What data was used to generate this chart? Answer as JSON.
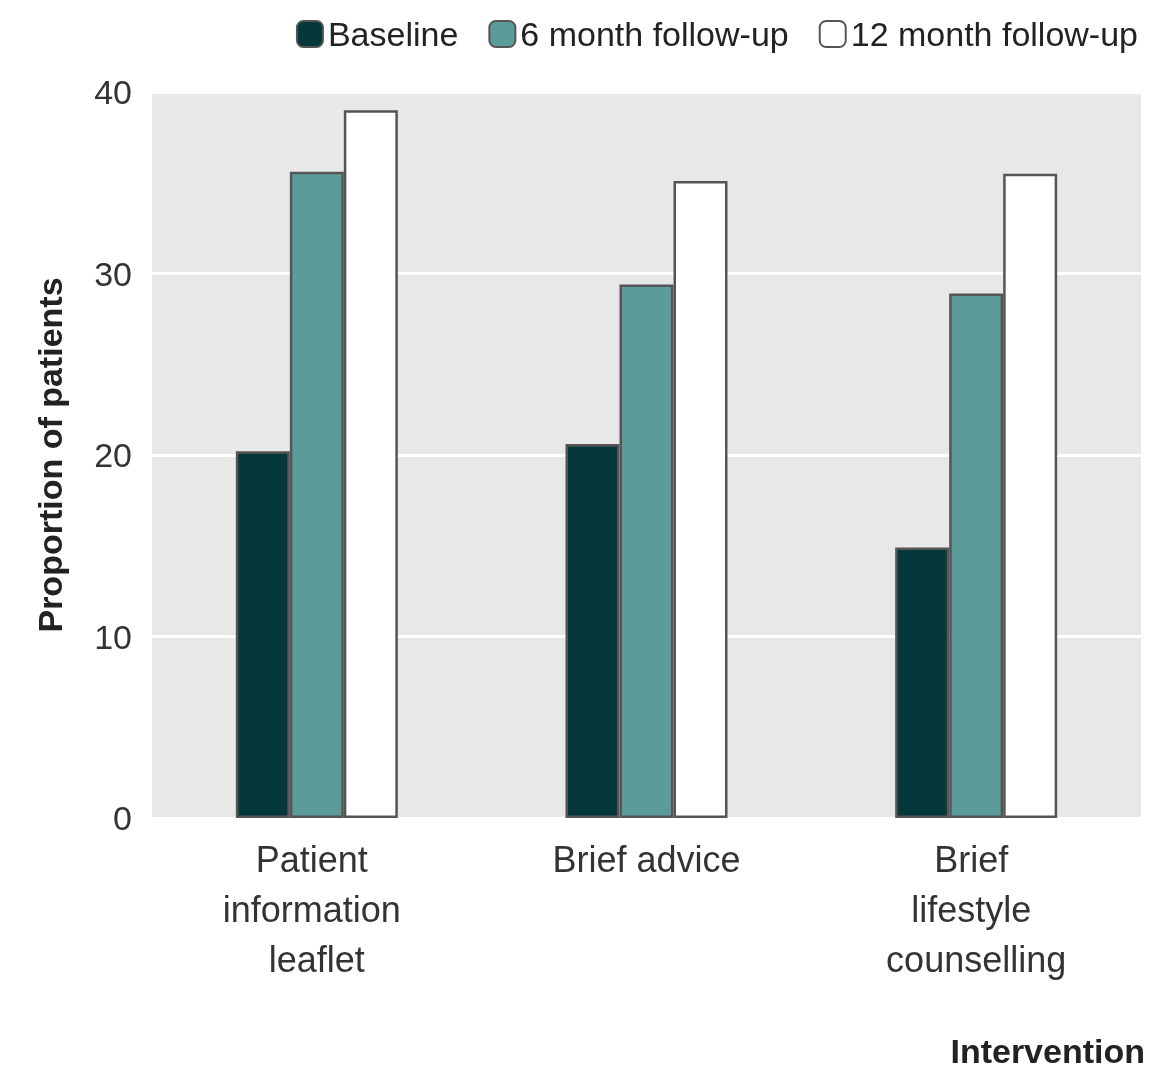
{
  "chart_data": {
    "type": "bar",
    "xlabel": "Intervention",
    "ylabel": "Proportion of patients",
    "categories": [
      "Patient information leaflet",
      "Brief advice",
      "Brief lifestyle counselling"
    ],
    "series": [
      {
        "name": "Baseline",
        "color": "#04383a",
        "values": [
          20.2,
          20.6,
          14.9
        ]
      },
      {
        "name": "6 month follow-up",
        "color": "#5b9b9a",
        "values": [
          35.6,
          29.4,
          28.9
        ]
      },
      {
        "name": "12 month follow-up",
        "color": "#ffffff",
        "values": [
          39.0,
          35.1,
          35.5
        ]
      }
    ],
    "ylim": [
      0,
      40
    ],
    "yticks": [
      0,
      10,
      20,
      30,
      40
    ],
    "grid": "y",
    "legend": "top right"
  }
}
